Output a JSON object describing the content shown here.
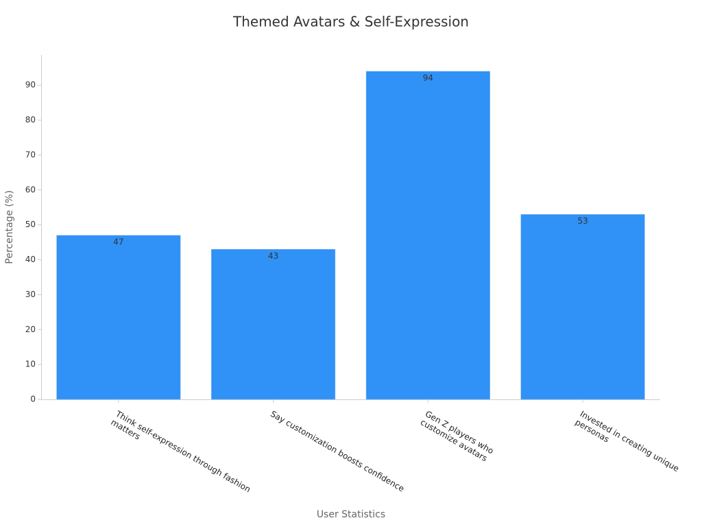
{
  "chart_data": {
    "type": "bar",
    "title": "Themed Avatars & Self-Expression",
    "x_label": "User Statistics",
    "y_label": "Percentage (%)",
    "categories": [
      "Think self-expression through fashion\nmatters",
      "Say customization boosts confidence",
      "Gen Z players who\ncustomize avatars",
      "Invested in creating unique\npersonas"
    ],
    "values": [
      47,
      43,
      94,
      53
    ],
    "color": "#3091f6",
    "ylim": [
      0,
      98.7
    ],
    "yticks": [
      0,
      10,
      20,
      30,
      40,
      50,
      60,
      70,
      80,
      90
    ],
    "grid": false
  }
}
